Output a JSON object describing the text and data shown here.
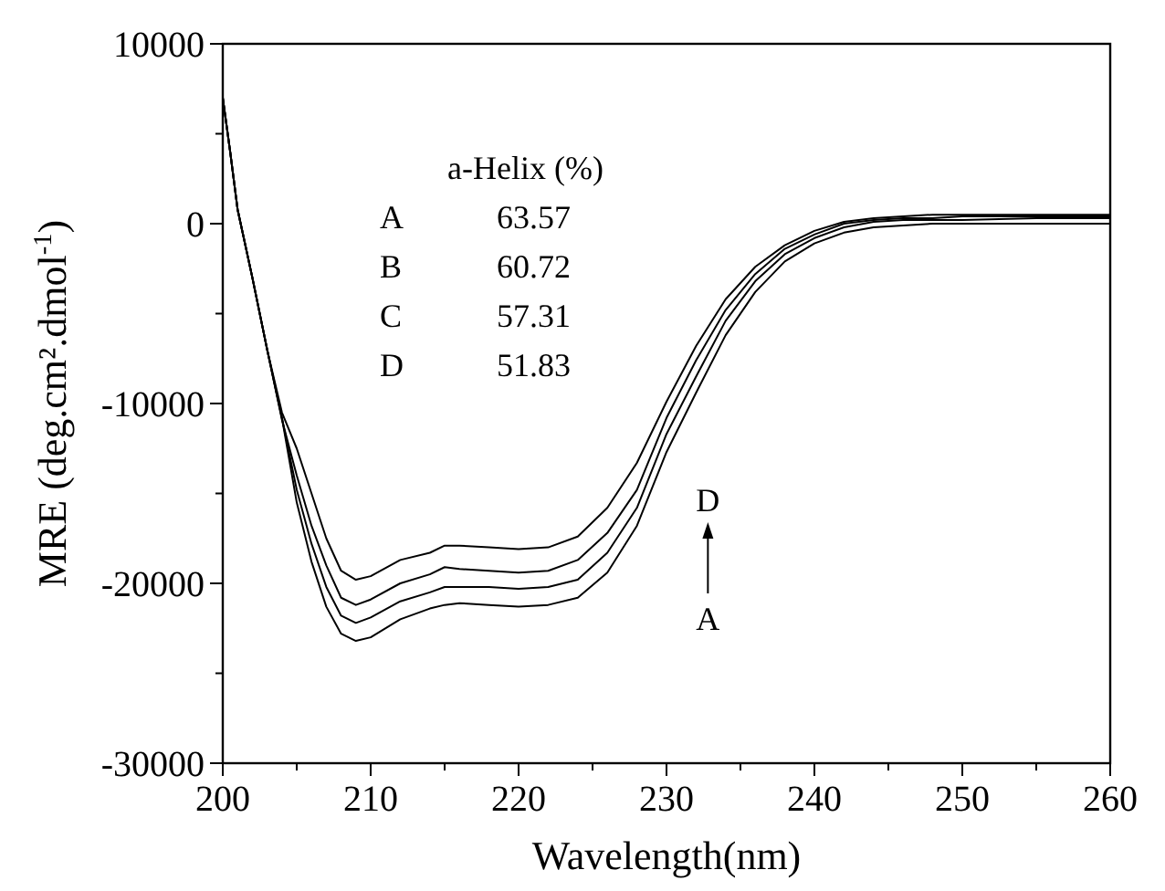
{
  "chart_data": {
    "type": "line",
    "xlabel": "Wavelength(nm)",
    "ylabel": "MRE (deg.cm².dmol$^{-1}$)",
    "xlim": [
      200,
      260
    ],
    "ylim": [
      -30000,
      10000
    ],
    "xticks": [
      200,
      {
        "value": 205,
        "label": null
      },
      210,
      {
        "value": 215,
        "label": null
      },
      220,
      {
        "value": 225,
        "label": null
      },
      230,
      {
        "value": 235,
        "label": null
      },
      240,
      {
        "value": 245,
        "label": null
      },
      250,
      {
        "value": 255,
        "label": null
      },
      260
    ],
    "yticks": [
      -30000,
      {
        "value": -25000,
        "label": null
      },
      -20000,
      {
        "value": -15000,
        "label": null
      },
      -10000,
      {
        "value": -5000,
        "label": null
      },
      0,
      {
        "value": 5000,
        "label": null
      },
      10000
    ],
    "grid": false,
    "marker": "none",
    "line_style": "solid",
    "x": [
      200,
      200.5,
      201,
      202,
      203,
      204,
      205,
      206,
      207,
      208,
      209,
      210,
      212,
      214,
      215,
      216,
      218,
      220,
      222,
      224,
      226,
      228,
      230,
      232,
      234,
      236,
      238,
      240,
      242,
      244,
      246,
      248,
      250,
      255,
      260
    ],
    "series": [
      {
        "color": "#000000",
        "values": [
          7000,
          4000,
          800,
          -3000,
          -7000,
          -10800,
          -15500,
          -18800,
          -21300,
          -22800,
          -23200,
          -23000,
          -22000,
          -21400,
          -21200,
          -21100,
          -21200,
          -21300,
          -21200,
          -20800,
          -19400,
          -16800,
          -12700,
          -9400,
          -6200,
          -3800,
          -2100,
          -1100,
          -500,
          -200,
          -100,
          0,
          0,
          0,
          0
        ]
      },
      {
        "color": "#000000",
        "values": [
          7000,
          4000,
          800,
          -3000,
          -7000,
          -10800,
          -14800,
          -17800,
          -20200,
          -21800,
          -22200,
          -21900,
          -21000,
          -20500,
          -20200,
          -20200,
          -20200,
          -20300,
          -20200,
          -19800,
          -18300,
          -15800,
          -11700,
          -8500,
          -5400,
          -3200,
          -1700,
          -800,
          -200,
          100,
          200,
          200,
          200,
          300,
          300
        ]
      },
      {
        "color": "#000000",
        "values": [
          7000,
          4000,
          800,
          -3000,
          -7000,
          -10900,
          -14000,
          -16800,
          -19000,
          -20800,
          -21200,
          -20900,
          -20000,
          -19500,
          -19100,
          -19200,
          -19300,
          -19400,
          -19300,
          -18700,
          -17200,
          -14800,
          -10800,
          -7600,
          -4800,
          -2800,
          -1400,
          -600,
          0,
          200,
          300,
          300,
          400,
          400,
          400
        ]
      },
      {
        "color": "#000000",
        "values": [
          7000,
          4000,
          800,
          -3000,
          -7000,
          -10500,
          -12500,
          -15000,
          -17500,
          -19300,
          -19800,
          -19600,
          -18700,
          -18300,
          -17900,
          -17900,
          -18000,
          -18100,
          -18000,
          -17400,
          -15800,
          -13300,
          -9900,
          -6800,
          -4200,
          -2400,
          -1200,
          -400,
          100,
          300,
          400,
          500,
          500,
          500,
          500
        ]
      }
    ],
    "annotations": [
      "a-Helix (%)",
      "A",
      "63.57",
      "B",
      "60.72",
      "C",
      "57.31",
      "D",
      "51.83",
      "D",
      "A"
    ]
  }
}
